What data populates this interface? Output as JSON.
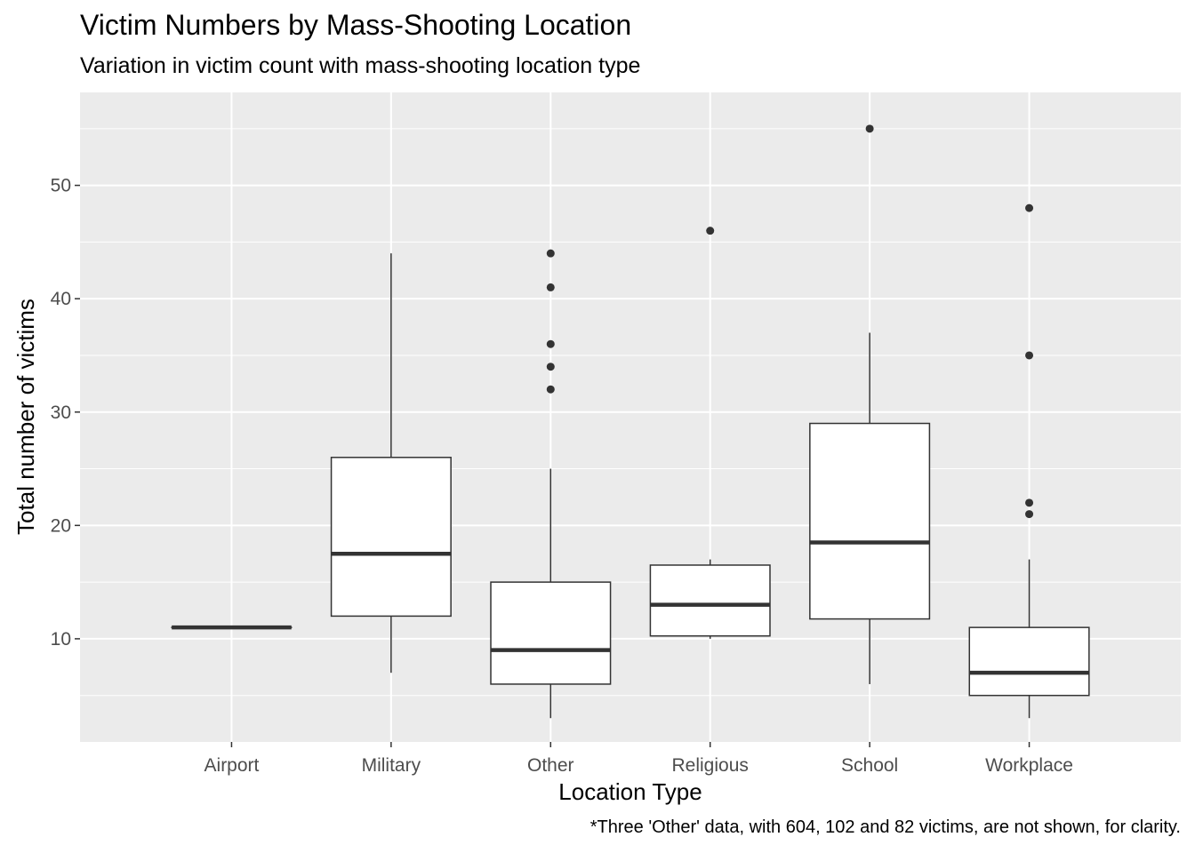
{
  "chart_data": {
    "type": "box",
    "title": "Victim Numbers by Mass-Shooting Location",
    "subtitle": "Variation in victim count with mass-shooting location type",
    "xlabel": "Location Type",
    "ylabel": "Total number of victims",
    "caption": "*Three 'Other' data, with 604, 102 and 82 victims, are not shown, for clarity.",
    "categories": [
      "Airport",
      "Military",
      "Other",
      "Religious",
      "School",
      "Workplace"
    ],
    "ylim": [
      0.9,
      58.2
    ],
    "yticks": [
      10,
      20,
      30,
      40,
      50
    ],
    "grid": true,
    "boxes": [
      {
        "category": "Airport",
        "min": 11,
        "q1": 11,
        "median": 11,
        "q3": 11,
        "max": 11,
        "outliers": []
      },
      {
        "category": "Military",
        "min": 7,
        "q1": 12,
        "median": 17.5,
        "q3": 26,
        "max": 44,
        "outliers": []
      },
      {
        "category": "Other",
        "min": 3,
        "q1": 6,
        "median": 9,
        "q3": 15,
        "max": 25,
        "outliers": [
          32,
          34,
          36,
          41,
          44
        ]
      },
      {
        "category": "Religious",
        "min": 10,
        "q1": 10.25,
        "median": 13,
        "q3": 16.5,
        "max": 17,
        "outliers": [
          46
        ]
      },
      {
        "category": "School",
        "min": 6,
        "q1": 11.75,
        "median": 18.5,
        "q3": 29,
        "max": 37,
        "outliers": [
          55
        ]
      },
      {
        "category": "Workplace",
        "min": 3,
        "q1": 5,
        "median": 7,
        "q3": 11,
        "max": 17,
        "outliers": [
          21,
          22,
          35,
          48
        ]
      }
    ]
  }
}
